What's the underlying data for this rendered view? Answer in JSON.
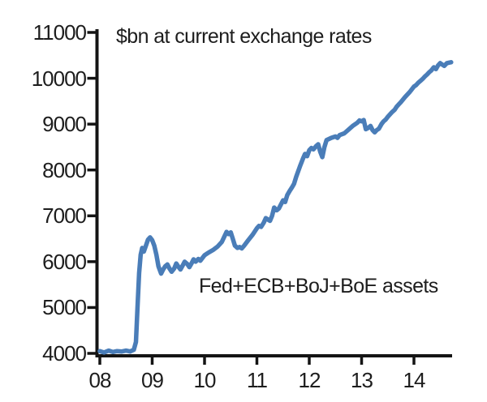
{
  "chart": {
    "title": "$bn at current exchange rates",
    "annotation": "Fed+ECB+BoJ+BoE assets"
  },
  "colors": {
    "background": "#ffffff",
    "line": "#4a7db8",
    "axis": "#141414",
    "text": "#1d1d1d"
  },
  "chart_data": {
    "type": "line",
    "title": "$bn at current exchange rates",
    "annotation": "Fed+ECB+BoJ+BoE assets",
    "xlabel": "",
    "ylabel": "",
    "grid": false,
    "legend_position": "none",
    "x_tick_labels": [
      "08",
      "09",
      "10",
      "11",
      "12",
      "13",
      "14"
    ],
    "x_tick_years": [
      2008,
      2009,
      2010,
      2011,
      2012,
      2013,
      2014
    ],
    "y_ticks": [
      4000,
      5000,
      6000,
      7000,
      8000,
      9000,
      10000,
      11000
    ],
    "ylim": [
      4000,
      11000
    ],
    "xlim": [
      2008.0,
      2014.8
    ],
    "series": [
      {
        "name": "Fed+ECB+BoJ+BoE assets",
        "unit": "$bn at current exchange rates",
        "points": [
          [
            2008.0,
            4050
          ],
          [
            2008.08,
            4020
          ],
          [
            2008.17,
            4060
          ],
          [
            2008.25,
            4030
          ],
          [
            2008.33,
            4050
          ],
          [
            2008.42,
            4040
          ],
          [
            2008.5,
            4060
          ],
          [
            2008.58,
            4040
          ],
          [
            2008.65,
            4080
          ],
          [
            2008.69,
            4250
          ],
          [
            2008.72,
            5000
          ],
          [
            2008.75,
            5750
          ],
          [
            2008.78,
            6150
          ],
          [
            2008.81,
            6300
          ],
          [
            2008.84,
            6220
          ],
          [
            2008.88,
            6350
          ],
          [
            2008.92,
            6480
          ],
          [
            2008.96,
            6530
          ],
          [
            2009.0,
            6470
          ],
          [
            2009.04,
            6350
          ],
          [
            2009.08,
            6150
          ],
          [
            2009.12,
            5900
          ],
          [
            2009.17,
            5740
          ],
          [
            2009.21,
            5830
          ],
          [
            2009.25,
            5900
          ],
          [
            2009.29,
            5940
          ],
          [
            2009.33,
            5850
          ],
          [
            2009.37,
            5780
          ],
          [
            2009.42,
            5850
          ],
          [
            2009.46,
            5960
          ],
          [
            2009.5,
            5890
          ],
          [
            2009.54,
            5830
          ],
          [
            2009.58,
            5910
          ],
          [
            2009.62,
            6000
          ],
          [
            2009.67,
            5950
          ],
          [
            2009.71,
            5880
          ],
          [
            2009.75,
            5960
          ],
          [
            2009.79,
            6050
          ],
          [
            2009.83,
            6000
          ],
          [
            2009.88,
            6060
          ],
          [
            2009.92,
            6020
          ],
          [
            2010.0,
            6140
          ],
          [
            2010.08,
            6200
          ],
          [
            2010.17,
            6260
          ],
          [
            2010.25,
            6330
          ],
          [
            2010.33,
            6430
          ],
          [
            2010.38,
            6550
          ],
          [
            2010.42,
            6650
          ],
          [
            2010.46,
            6600
          ],
          [
            2010.5,
            6640
          ],
          [
            2010.54,
            6500
          ],
          [
            2010.58,
            6350
          ],
          [
            2010.63,
            6300
          ],
          [
            2010.67,
            6320
          ],
          [
            2010.71,
            6290
          ],
          [
            2010.75,
            6340
          ],
          [
            2010.83,
            6460
          ],
          [
            2010.92,
            6590
          ],
          [
            2011.0,
            6730
          ],
          [
            2011.04,
            6780
          ],
          [
            2011.08,
            6760
          ],
          [
            2011.13,
            6850
          ],
          [
            2011.17,
            6950
          ],
          [
            2011.21,
            6920
          ],
          [
            2011.25,
            6890
          ],
          [
            2011.29,
            7000
          ],
          [
            2011.33,
            7180
          ],
          [
            2011.38,
            7120
          ],
          [
            2011.42,
            7160
          ],
          [
            2011.46,
            7250
          ],
          [
            2011.5,
            7340
          ],
          [
            2011.54,
            7300
          ],
          [
            2011.58,
            7450
          ],
          [
            2011.63,
            7550
          ],
          [
            2011.67,
            7620
          ],
          [
            2011.71,
            7700
          ],
          [
            2011.75,
            7850
          ],
          [
            2011.83,
            8100
          ],
          [
            2011.88,
            8250
          ],
          [
            2011.92,
            8350
          ],
          [
            2011.96,
            8300
          ],
          [
            2012.0,
            8430
          ],
          [
            2012.04,
            8480
          ],
          [
            2012.08,
            8450
          ],
          [
            2012.13,
            8520
          ],
          [
            2012.17,
            8560
          ],
          [
            2012.21,
            8400
          ],
          [
            2012.25,
            8280
          ],
          [
            2012.29,
            8500
          ],
          [
            2012.33,
            8650
          ],
          [
            2012.42,
            8700
          ],
          [
            2012.5,
            8730
          ],
          [
            2012.54,
            8700
          ],
          [
            2012.58,
            8760
          ],
          [
            2012.67,
            8800
          ],
          [
            2012.75,
            8880
          ],
          [
            2012.83,
            8960
          ],
          [
            2012.88,
            9000
          ],
          [
            2012.92,
            9030
          ],
          [
            2012.96,
            9080
          ],
          [
            2013.0,
            9060
          ],
          [
            2013.04,
            9090
          ],
          [
            2013.08,
            8890
          ],
          [
            2013.13,
            8920
          ],
          [
            2013.17,
            8960
          ],
          [
            2013.21,
            8870
          ],
          [
            2013.25,
            8820
          ],
          [
            2013.29,
            8870
          ],
          [
            2013.33,
            8900
          ],
          [
            2013.38,
            9000
          ],
          [
            2013.42,
            9060
          ],
          [
            2013.46,
            9100
          ],
          [
            2013.5,
            9160
          ],
          [
            2013.54,
            9210
          ],
          [
            2013.58,
            9260
          ],
          [
            2013.63,
            9310
          ],
          [
            2013.67,
            9380
          ],
          [
            2013.71,
            9430
          ],
          [
            2013.75,
            9480
          ],
          [
            2013.83,
            9590
          ],
          [
            2013.92,
            9700
          ],
          [
            2014.0,
            9820
          ],
          [
            2014.04,
            9850
          ],
          [
            2014.08,
            9900
          ],
          [
            2014.13,
            9950
          ],
          [
            2014.17,
            9990
          ],
          [
            2014.21,
            10040
          ],
          [
            2014.25,
            10080
          ],
          [
            2014.29,
            10130
          ],
          [
            2014.33,
            10170
          ],
          [
            2014.38,
            10240
          ],
          [
            2014.42,
            10200
          ],
          [
            2014.46,
            10280
          ],
          [
            2014.5,
            10330
          ],
          [
            2014.54,
            10300
          ],
          [
            2014.58,
            10270
          ],
          [
            2014.63,
            10330
          ],
          [
            2014.67,
            10340
          ],
          [
            2014.71,
            10350
          ]
        ]
      }
    ]
  }
}
